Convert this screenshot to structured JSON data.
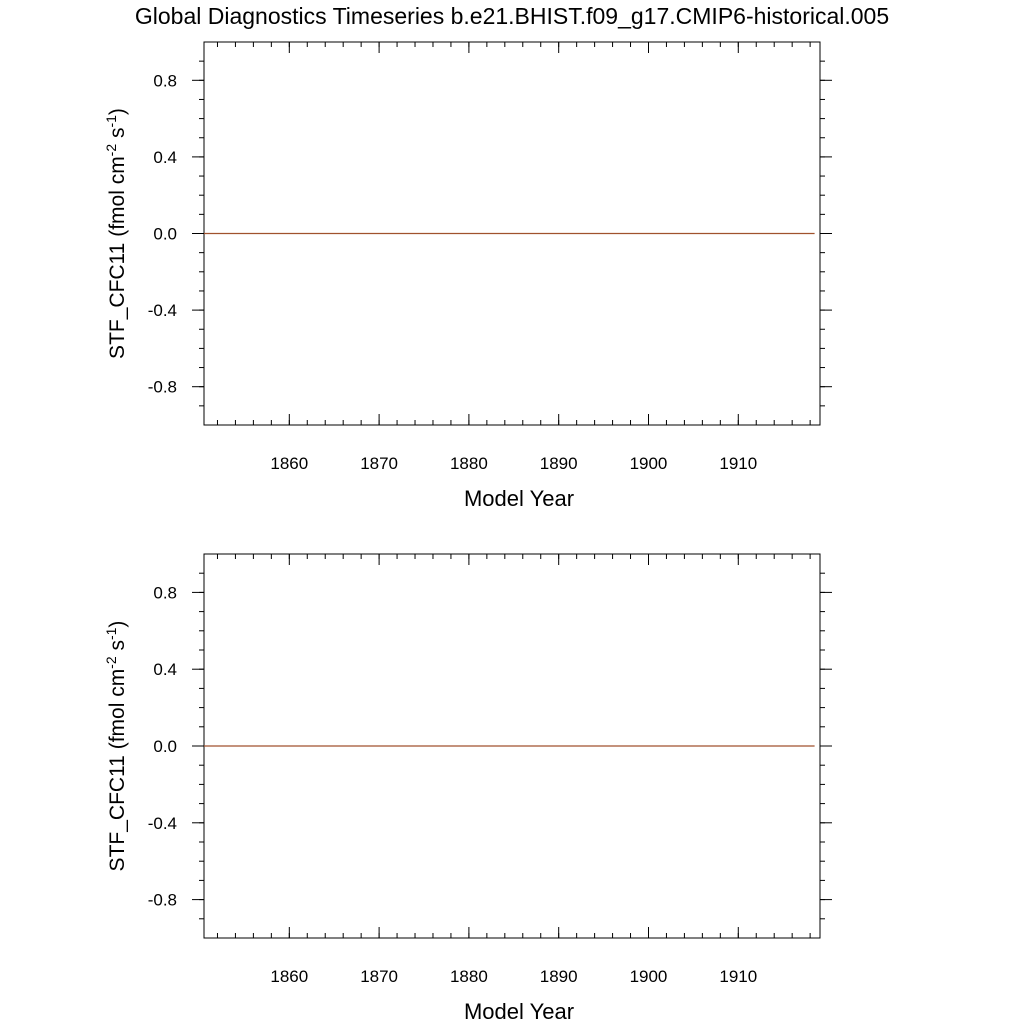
{
  "title": "Global Diagnostics Timeseries b.e21.BHIST.f09_g17.CMIP6-historical.005",
  "colors": {
    "series": "#a0522d",
    "axes": "#000000",
    "background": "#ffffff"
  },
  "chart_data": [
    {
      "type": "line",
      "xlabel": "Model Year",
      "ylabel": {
        "main": "STF_CFC11 (fmol cm",
        "sup1": "-2",
        "mid": " s",
        "sup2": "-1",
        "end": ")"
      },
      "xlim": [
        1850.5,
        1919.1
      ],
      "ylim": [
        -1.0,
        1.0
      ],
      "x_ticks": [
        1860,
        1870,
        1880,
        1890,
        1900,
        1910
      ],
      "x_minor_step": 2,
      "y_ticks": [
        0.8,
        0.4,
        0.0,
        -0.4,
        -0.8
      ],
      "y_tick_labels": [
        "0.8",
        "0.4",
        "0.0",
        "-0.4",
        "-0.8"
      ],
      "y_minor_step": 0.1,
      "grid": false,
      "series": [
        {
          "color": "#a0522d",
          "x": [
            1850.5,
            1918.5
          ],
          "values": [
            0.0,
            0.0
          ]
        }
      ]
    },
    {
      "type": "line",
      "xlabel": "Model Year",
      "ylabel": {
        "main": "STF_CFC11 (fmol cm",
        "sup1": "-2",
        "mid": " s",
        "sup2": "-1",
        "end": ")"
      },
      "xlim": [
        1850.5,
        1919.1
      ],
      "ylim": [
        -1.0,
        1.0
      ],
      "x_ticks": [
        1860,
        1870,
        1880,
        1890,
        1900,
        1910
      ],
      "x_minor_step": 2,
      "y_ticks": [
        0.8,
        0.4,
        0.0,
        -0.4,
        -0.8
      ],
      "y_tick_labels": [
        "0.8",
        "0.4",
        "0.0",
        "-0.4",
        "-0.8"
      ],
      "y_minor_step": 0.1,
      "grid": false,
      "series": [
        {
          "color": "#a0522d",
          "x": [
            1850.5,
            1918.5
          ],
          "values": [
            0.0,
            0.0
          ]
        }
      ]
    }
  ]
}
